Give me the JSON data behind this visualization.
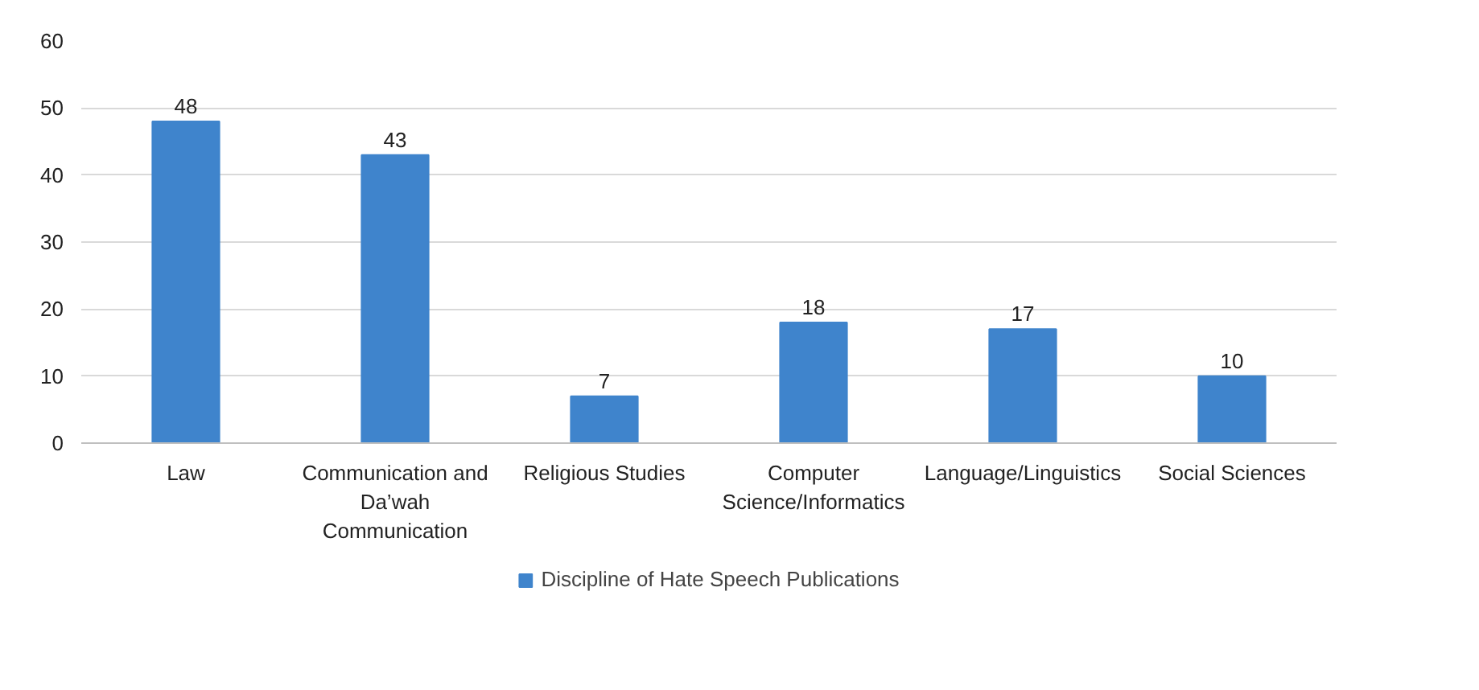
{
  "chart_data": {
    "type": "bar",
    "categories": [
      "Law",
      "Communication and Da’wah Communication",
      "Religious Studies",
      "Computer Science/Informatics",
      "Language/Linguistics",
      "Social Sciences"
    ],
    "series": [
      {
        "name": "Discipline of Hate Speech Publications",
        "color": "#3f84cc",
        "values": [
          48,
          43,
          7,
          18,
          17,
          10
        ]
      }
    ],
    "ylim": [
      0,
      60
    ],
    "yticks": [
      0,
      10,
      20,
      30,
      40,
      50,
      60
    ],
    "grid": "y",
    "legend": "bottom",
    "data_labels": true
  }
}
